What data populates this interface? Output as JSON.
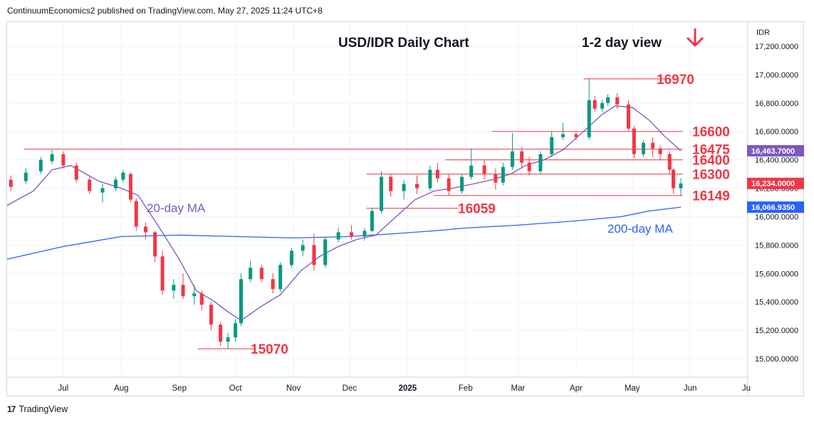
{
  "header": {
    "published_text": "ContinuumEconomics2 published on TradingView.com, May 27, 2025 11:24 UTC+8"
  },
  "footer": {
    "logo_mark": "17",
    "brand": "TradingView"
  },
  "colors": {
    "up": "#089981",
    "down": "#f23645",
    "ma20": "#7e57c2",
    "ma200": "#2962ff",
    "level": "#e53945",
    "label_red": "#f23645",
    "grid": "#f0f3fa"
  },
  "chart_data": {
    "type": "candlestick",
    "title": "USD/IDR Daily Chart",
    "subtitle": "1-2 day view",
    "direction_icon": "down-arrow-icon",
    "currency_label": "IDR",
    "y_axis": {
      "range": [
        14870,
        17370
      ],
      "ticks": [
        "17,200.0000",
        "17,000.0000",
        "16,800.0000",
        "16,600.0000",
        "16,400.0000",
        "16,200.0000",
        "16,000.0000",
        "15,800.0000",
        "15,600.0000",
        "15,400.0000",
        "15,200.0000",
        "15,000.0000"
      ],
      "tick_values": [
        17200,
        17000,
        16800,
        16600,
        16400,
        16200,
        16000,
        15800,
        15600,
        15400,
        15200,
        15000
      ]
    },
    "x_axis": {
      "range": [
        "2024-06-01",
        "2025-07-01"
      ],
      "ticks": [
        {
          "label": "Jul",
          "date": "2024-07-01",
          "bold": false
        },
        {
          "label": "Aug",
          "date": "2024-08-01",
          "bold": false
        },
        {
          "label": "Sep",
          "date": "2024-09-01",
          "bold": false
        },
        {
          "label": "Oct",
          "date": "2024-10-01",
          "bold": false
        },
        {
          "label": "Nov",
          "date": "2024-11-01",
          "bold": false
        },
        {
          "label": "Dec",
          "date": "2024-12-01",
          "bold": false
        },
        {
          "label": "2025",
          "date": "2025-01-01",
          "bold": true
        },
        {
          "label": "Feb",
          "date": "2025-02-01",
          "bold": false
        },
        {
          "label": "Mar",
          "date": "2025-03-01",
          "bold": false
        },
        {
          "label": "Apr",
          "date": "2025-04-01",
          "bold": false
        },
        {
          "label": "May",
          "date": "2025-05-01",
          "bold": false
        },
        {
          "label": "Jun",
          "date": "2025-06-01",
          "bold": false
        },
        {
          "label": "Ju",
          "date": "2025-07-01",
          "bold": false
        }
      ]
    },
    "price_tags": [
      {
        "text": "16,463.7000",
        "value": 16463.7,
        "color": "#7e57c2"
      },
      {
        "text": "16,234.0000",
        "value": 16234,
        "color": "#f23645"
      },
      {
        "text": "16,066.9350",
        "value": 16066.935,
        "color": "#2962ff"
      }
    ],
    "levels": [
      {
        "label": "16970",
        "value": 16970,
        "from": "2025-04-05",
        "to": "2025-05-20"
      },
      {
        "label": "16600",
        "value": 16600,
        "from": "2025-02-15",
        "to": "2025-05-28"
      },
      {
        "label": "16475",
        "value": 16475,
        "from": "2024-06-10",
        "to": "2025-05-28"
      },
      {
        "label": "16400",
        "value": 16400,
        "from": "2025-01-21",
        "to": "2025-05-28"
      },
      {
        "label": "16300",
        "value": 16300,
        "from": "2024-12-10",
        "to": "2025-05-28"
      },
      {
        "label": "16149",
        "value": 16149,
        "from": "2025-01-15",
        "to": "2025-05-28"
      },
      {
        "label": "16059",
        "value": 16059,
        "from": "2024-12-10",
        "to": "2025-01-28"
      },
      {
        "label": "15070",
        "value": 15070,
        "from": "2024-09-11",
        "to": "2024-10-12"
      }
    ],
    "annotations": [
      {
        "text": "20-day MA",
        "color": "#7e57c2"
      },
      {
        "text": "200-day MA",
        "color": "#2962ff"
      }
    ],
    "series": [
      {
        "name": "USD/IDR",
        "kind": "ohlc",
        "points": [
          [
            "2024-06-03",
            16260,
            16290,
            16180,
            16210
          ],
          [
            "2024-06-11",
            16250,
            16340,
            16230,
            16310
          ],
          [
            "2024-06-19",
            16320,
            16420,
            16300,
            16400
          ],
          [
            "2024-06-25",
            16390,
            16470,
            16370,
            16440
          ],
          [
            "2024-07-01",
            16440,
            16460,
            16340,
            16360
          ],
          [
            "2024-07-08",
            16360,
            16380,
            16240,
            16260
          ],
          [
            "2024-07-15",
            16260,
            16280,
            16160,
            16180
          ],
          [
            "2024-07-22",
            16170,
            16230,
            16100,
            16200
          ],
          [
            "2024-07-29",
            16200,
            16280,
            16180,
            16260
          ],
          [
            "2024-08-02",
            16260,
            16330,
            16240,
            16310
          ],
          [
            "2024-08-06",
            16300,
            16310,
            16100,
            16120
          ],
          [
            "2024-08-09",
            16110,
            16130,
            15900,
            15930
          ],
          [
            "2024-08-14",
            15930,
            15960,
            15840,
            15890
          ],
          [
            "2024-08-19",
            15890,
            15900,
            15680,
            15720
          ],
          [
            "2024-08-23",
            15720,
            15760,
            15450,
            15480
          ],
          [
            "2024-08-29",
            15480,
            15560,
            15420,
            15520
          ],
          [
            "2024-09-03",
            15520,
            15600,
            15420,
            15440
          ],
          [
            "2024-09-09",
            15440,
            15520,
            15380,
            15460
          ],
          [
            "2024-09-13",
            15460,
            15480,
            15340,
            15380
          ],
          [
            "2024-09-18",
            15380,
            15400,
            15200,
            15240
          ],
          [
            "2024-09-23",
            15240,
            15260,
            15090,
            15120
          ],
          [
            "2024-09-27",
            15120,
            15180,
            15070,
            15150
          ],
          [
            "2024-10-01",
            15150,
            15280,
            15120,
            15250
          ],
          [
            "2024-10-04",
            15250,
            15600,
            15230,
            15560
          ],
          [
            "2024-10-09",
            15560,
            15690,
            15540,
            15640
          ],
          [
            "2024-10-15",
            15640,
            15660,
            15540,
            15560
          ],
          [
            "2024-10-21",
            15560,
            15600,
            15460,
            15490
          ],
          [
            "2024-10-25",
            15490,
            15680,
            15470,
            15660
          ],
          [
            "2024-10-31",
            15660,
            15780,
            15640,
            15760
          ],
          [
            "2024-11-06",
            15760,
            15840,
            15720,
            15800
          ],
          [
            "2024-11-12",
            15800,
            15880,
            15620,
            15660
          ],
          [
            "2024-11-18",
            15660,
            15860,
            15640,
            15840
          ],
          [
            "2024-11-25",
            15840,
            15920,
            15820,
            15890
          ],
          [
            "2024-12-02",
            15890,
            15940,
            15840,
            15860
          ],
          [
            "2024-12-09",
            15860,
            15920,
            15830,
            15900
          ],
          [
            "2024-12-13",
            15900,
            16060,
            15890,
            16040
          ],
          [
            "2024-12-18",
            16040,
            16320,
            16020,
            16280
          ],
          [
            "2024-12-23",
            16280,
            16300,
            16140,
            16180
          ],
          [
            "2024-12-30",
            16180,
            16260,
            16120,
            16230
          ],
          [
            "2025-01-06",
            16230,
            16290,
            16160,
            16200
          ],
          [
            "2025-01-13",
            16200,
            16360,
            16180,
            16330
          ],
          [
            "2025-01-17",
            16330,
            16380,
            16240,
            16270
          ],
          [
            "2025-01-23",
            16270,
            16300,
            16150,
            16180
          ],
          [
            "2025-01-30",
            16180,
            16300,
            16160,
            16280
          ],
          [
            "2025-02-04",
            16280,
            16480,
            16260,
            16360
          ],
          [
            "2025-02-11",
            16360,
            16400,
            16260,
            16300
          ],
          [
            "2025-02-17",
            16300,
            16340,
            16190,
            16240
          ],
          [
            "2025-02-21",
            16240,
            16380,
            16220,
            16350
          ],
          [
            "2025-02-26",
            16350,
            16590,
            16330,
            16460
          ],
          [
            "2025-03-03",
            16460,
            16490,
            16340,
            16380
          ],
          [
            "2025-03-07",
            16380,
            16420,
            16290,
            16320
          ],
          [
            "2025-03-13",
            16320,
            16460,
            16300,
            16440
          ],
          [
            "2025-03-19",
            16440,
            16600,
            16420,
            16560
          ],
          [
            "2025-03-25",
            16560,
            16660,
            16540,
            16580
          ],
          [
            "2025-04-01",
            16580,
            16600,
            16540,
            16560
          ],
          [
            "2025-04-08",
            16560,
            16970,
            16540,
            16820
          ],
          [
            "2025-04-11",
            16820,
            16850,
            16740,
            16760
          ],
          [
            "2025-04-15",
            16760,
            16820,
            16740,
            16800
          ],
          [
            "2025-04-18",
            16800,
            16860,
            16780,
            16840
          ],
          [
            "2025-04-23",
            16840,
            16870,
            16760,
            16790
          ],
          [
            "2025-04-29",
            16790,
            16820,
            16600,
            16620
          ],
          [
            "2025-05-02",
            16620,
            16640,
            16410,
            16440
          ],
          [
            "2025-05-07",
            16440,
            16540,
            16420,
            16520
          ],
          [
            "2025-05-12",
            16520,
            16560,
            16420,
            16480
          ],
          [
            "2025-05-16",
            16480,
            16500,
            16400,
            16440
          ],
          [
            "2025-05-21",
            16440,
            16460,
            16300,
            16330
          ],
          [
            "2025-05-23",
            16330,
            16340,
            16160,
            16200
          ],
          [
            "2025-05-27",
            16200,
            16270,
            16149,
            16234
          ]
        ]
      },
      {
        "name": "20-day MA",
        "kind": "line",
        "points": [
          [
            "2024-06-01",
            16080
          ],
          [
            "2024-06-15",
            16180
          ],
          [
            "2024-06-25",
            16330
          ],
          [
            "2024-07-05",
            16360
          ],
          [
            "2024-07-20",
            16250
          ],
          [
            "2024-08-01",
            16200
          ],
          [
            "2024-08-10",
            16150
          ],
          [
            "2024-08-20",
            15950
          ],
          [
            "2024-09-01",
            15700
          ],
          [
            "2024-09-10",
            15480
          ],
          [
            "2024-09-20",
            15400
          ],
          [
            "2024-09-27",
            15330
          ],
          [
            "2024-10-04",
            15270
          ],
          [
            "2024-10-15",
            15370
          ],
          [
            "2024-10-25",
            15450
          ],
          [
            "2024-11-05",
            15620
          ],
          [
            "2024-11-15",
            15720
          ],
          [
            "2024-11-25",
            15790
          ],
          [
            "2024-12-05",
            15840
          ],
          [
            "2024-12-15",
            15870
          ],
          [
            "2024-12-25",
            15990
          ],
          [
            "2025-01-05",
            16120
          ],
          [
            "2025-01-15",
            16180
          ],
          [
            "2025-01-25",
            16200
          ],
          [
            "2025-02-05",
            16230
          ],
          [
            "2025-02-15",
            16260
          ],
          [
            "2025-02-25",
            16300
          ],
          [
            "2025-03-05",
            16360
          ],
          [
            "2025-03-15",
            16400
          ],
          [
            "2025-03-25",
            16470
          ],
          [
            "2025-04-05",
            16600
          ],
          [
            "2025-04-15",
            16720
          ],
          [
            "2025-04-22",
            16780
          ],
          [
            "2025-05-01",
            16770
          ],
          [
            "2025-05-10",
            16680
          ],
          [
            "2025-05-18",
            16570
          ],
          [
            "2025-05-27",
            16463.7
          ]
        ]
      },
      {
        "name": "200-day MA",
        "kind": "line",
        "points": [
          [
            "2024-06-01",
            15700
          ],
          [
            "2024-07-01",
            15790
          ],
          [
            "2024-08-01",
            15860
          ],
          [
            "2024-09-01",
            15870
          ],
          [
            "2024-10-01",
            15860
          ],
          [
            "2024-11-01",
            15850
          ],
          [
            "2024-12-01",
            15860
          ],
          [
            "2024-12-25",
            15880
          ],
          [
            "2025-01-15",
            15900
          ],
          [
            "2025-02-01",
            15920
          ],
          [
            "2025-03-01",
            15940
          ],
          [
            "2025-04-01",
            15970
          ],
          [
            "2025-04-25",
            16000
          ],
          [
            "2025-05-10",
            16040
          ],
          [
            "2025-05-27",
            16066.935
          ]
        ]
      }
    ]
  }
}
